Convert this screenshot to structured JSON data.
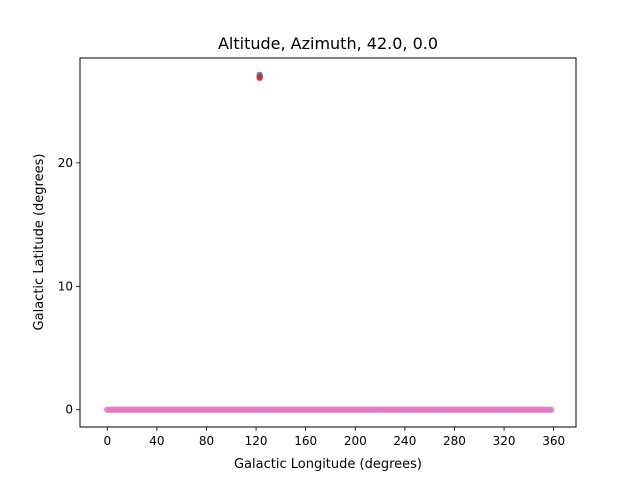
{
  "chart_data": {
    "type": "scatter",
    "title": "Altitude, Azimuth, 42.0, 0.0",
    "xlabel": "Galactic Longitude (degrees)",
    "ylabel": "Galactic Latitude (degrees)",
    "xlim": [
      -22,
      378
    ],
    "ylim": [
      -1.4,
      28.5
    ],
    "xticks": [
      0,
      40,
      80,
      120,
      160,
      200,
      240,
      280,
      320,
      360
    ],
    "yticks": [
      0,
      10,
      20
    ],
    "grid": false,
    "legend": "none",
    "series": [
      {
        "color": "#e377c2",
        "marker": "circle",
        "x_start": 0,
        "x_end": 358,
        "x_step": 2,
        "y": 0
      },
      {
        "color": "#1f77b4",
        "marker": "circle",
        "x": [
          122.9
        ],
        "y": [
          27.13
        ]
      },
      {
        "color": "#9467bd",
        "marker": "circle",
        "x": [
          122.9
        ],
        "y": [
          27.05
        ]
      },
      {
        "color": "#8c564b",
        "marker": "circle",
        "x": [
          122.9
        ],
        "y": [
          26.97
        ]
      },
      {
        "color": "#d62728",
        "marker": "circle",
        "x": [
          122.9
        ],
        "y": [
          26.9
        ]
      }
    ]
  }
}
